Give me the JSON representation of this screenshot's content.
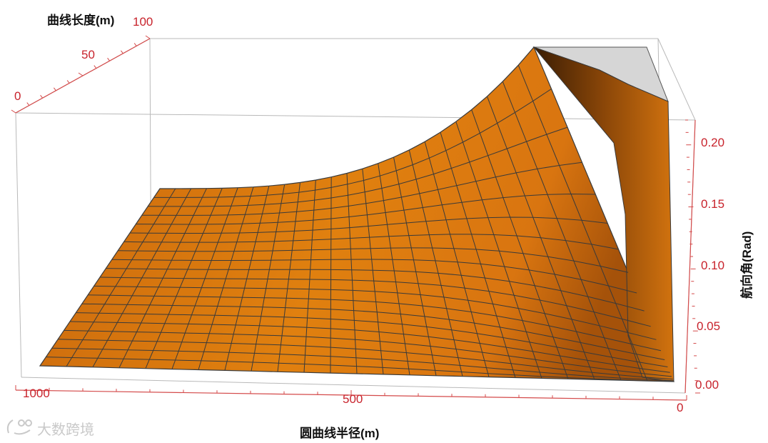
{
  "chart_data": {
    "type": "surface3d",
    "title": "",
    "xlabel": "圆曲线半径(m)",
    "ylabel": "曲线长度(m)",
    "zlabel": "航向角(Rad)",
    "x_ticks": [
      "1000",
      "500",
      "0"
    ],
    "y_ticks": [
      "0",
      "50",
      "100"
    ],
    "z_ticks": [
      "0.00",
      "0.05",
      "0.10",
      "0.15",
      "0.20"
    ],
    "xlim": [
      0,
      1000
    ],
    "ylim": [
      0,
      100
    ],
    "zlim": [
      0,
      0.22
    ],
    "function": "z = L / R (heading angle = curve length / circle radius), clipped at top",
    "surface_color": "#e07a14",
    "mesh_color": "#3a3a3a",
    "clip_color": "#d4d4d4",
    "grid": false
  },
  "watermark": {
    "icon": "logo-icon",
    "text": "大数跨境"
  }
}
